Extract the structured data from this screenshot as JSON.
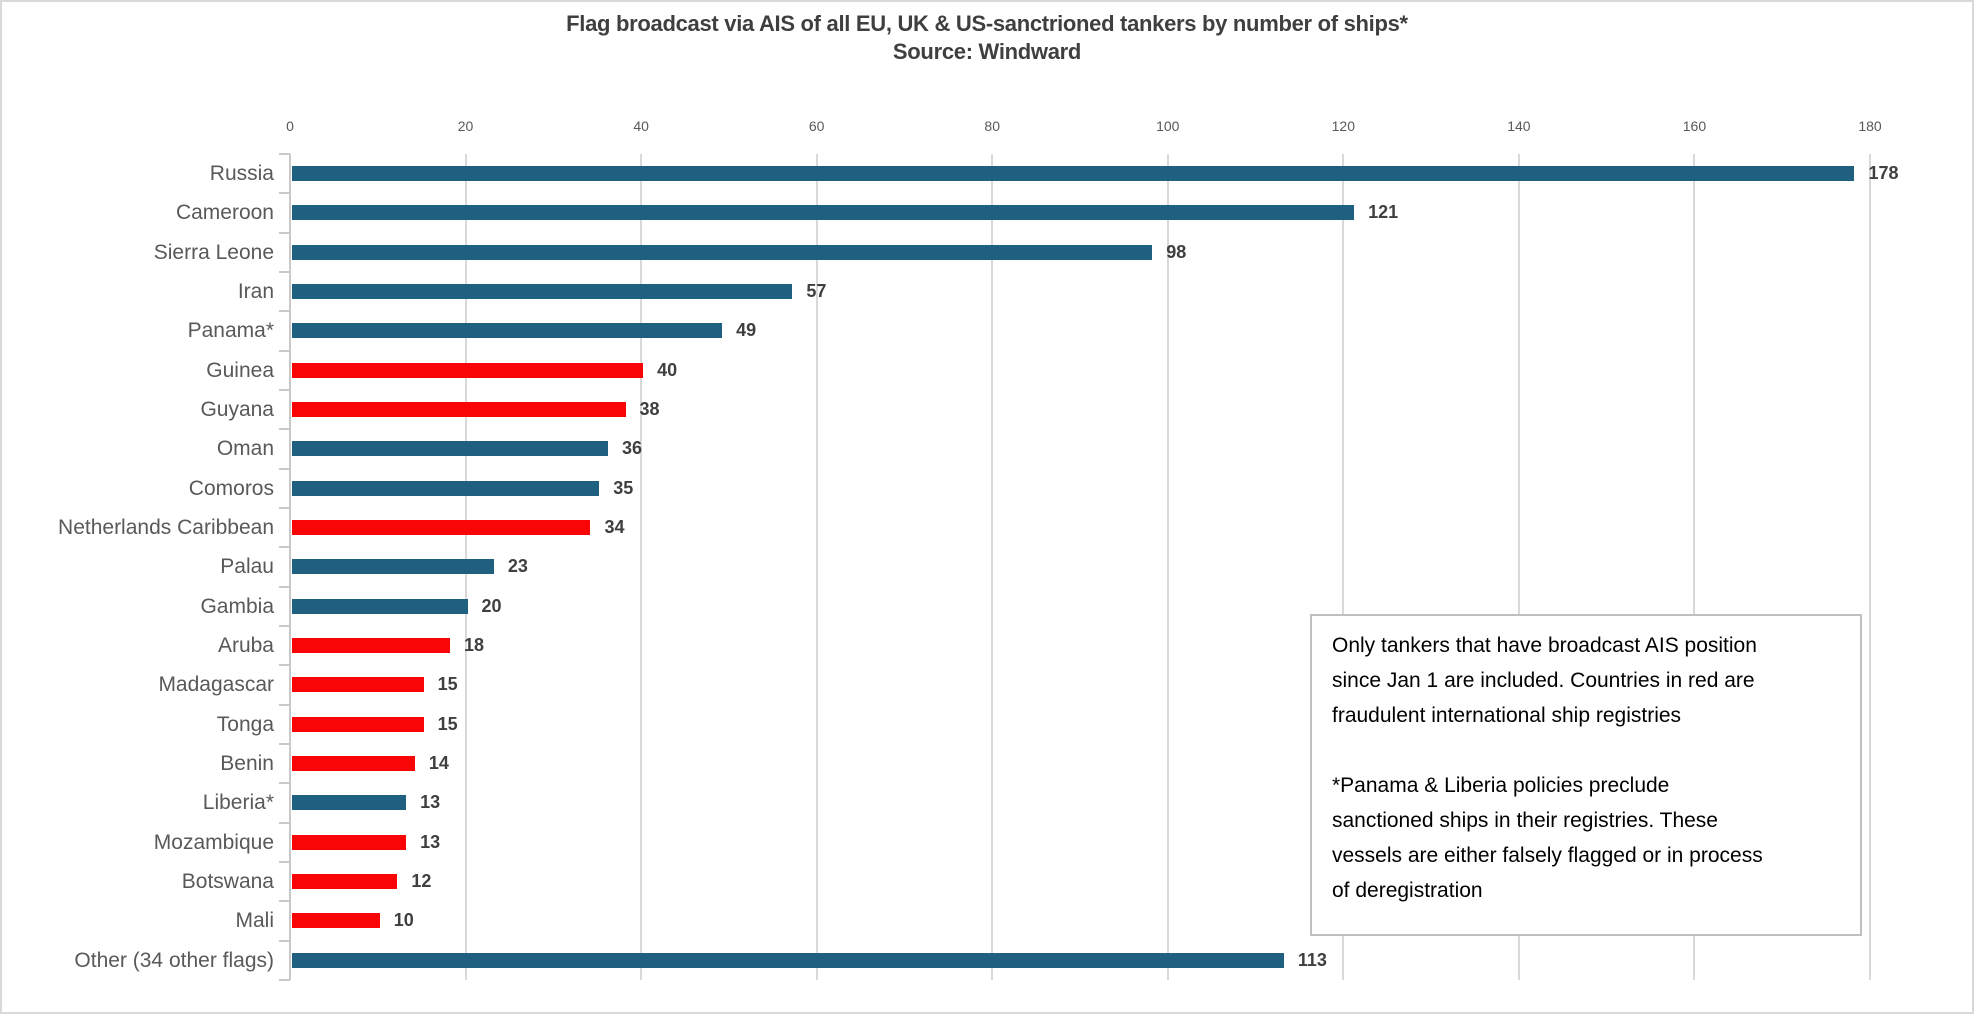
{
  "header": {
    "title": "Flag broadcast via AIS of all EU, UK & US-sanctrioned tankers by number of ships*",
    "subtitle": "Source: Windward"
  },
  "chart_data": {
    "type": "bar",
    "orientation": "horizontal",
    "title": "Flag broadcast via AIS of all EU, UK & US-sanctrioned tankers by number of ships*",
    "subtitle": "Source: Windward",
    "xlim": [
      0,
      180
    ],
    "x_ticks": [
      0,
      20,
      40,
      60,
      80,
      100,
      120,
      140,
      160,
      180
    ],
    "grid": true,
    "legend": false,
    "value_labels": true,
    "axis_position": "top",
    "bars": [
      {
        "label": "Russia",
        "value": 178,
        "color": "#1F5F7F"
      },
      {
        "label": "Cameroon",
        "value": 121,
        "color": "#1F5F7F"
      },
      {
        "label": "Sierra Leone",
        "value": 98,
        "color": "#1F5F7F"
      },
      {
        "label": "Iran",
        "value": 57,
        "color": "#1F5F7F"
      },
      {
        "label": "Panama*",
        "value": 49,
        "color": "#1F5F7F"
      },
      {
        "label": "Guinea",
        "value": 40,
        "color": "#F90505"
      },
      {
        "label": "Guyana",
        "value": 38,
        "color": "#F90505"
      },
      {
        "label": "Oman",
        "value": 36,
        "color": "#1F5F7F"
      },
      {
        "label": "Comoros",
        "value": 35,
        "color": "#1F5F7F"
      },
      {
        "label": "Netherlands Caribbean",
        "value": 34,
        "color": "#F90505"
      },
      {
        "label": "Palau",
        "value": 23,
        "color": "#1F5F7F"
      },
      {
        "label": "Gambia",
        "value": 20,
        "color": "#1F5F7F"
      },
      {
        "label": "Aruba",
        "value": 18,
        "color": "#F90505"
      },
      {
        "label": "Madagascar",
        "value": 15,
        "color": "#F90505"
      },
      {
        "label": "Tonga",
        "value": 15,
        "color": "#F90505"
      },
      {
        "label": "Benin",
        "value": 14,
        "color": "#F90505"
      },
      {
        "label": "Liberia*",
        "value": 13,
        "color": "#1F5F7F"
      },
      {
        "label": "Mozambique",
        "value": 13,
        "color": "#F90505"
      },
      {
        "label": "Botswana",
        "value": 12,
        "color": "#F90505"
      },
      {
        "label": "Mali",
        "value": 10,
        "color": "#F90505"
      },
      {
        "label": "Other (34 other flags)",
        "value": 113,
        "color": "#1F5F7F"
      }
    ]
  },
  "annotation_box": {
    "paragraph1": "Only tankers that have broadcast AIS position since Jan 1 are included. Countries in red are fraudulent international ship registries",
    "paragraph2": "*Panama & Liberia policies preclude sanctioned ships in their registries. These vessels are either falsely flagged or in process of deregistration",
    "lines": [
      "Only tankers that have broadcast AIS position",
      "since Jan 1 are included. Countries in red are",
      "fraudulent international ship registries",
      "",
      "*Panama & Liberia policies preclude",
      "sanctioned ships in their registries. These",
      "vessels are either falsely flagged or in process",
      "of deregistration"
    ]
  },
  "colors": {
    "default_bar": "#1F5F7F",
    "fraudulent_bar": "#F90505",
    "title_text": "#3F3F3F",
    "axis_text": "#595959",
    "category_text": "#595959",
    "value_text": "#3F3F3F",
    "gridline": "#D9D9D9",
    "axis_line": "#C9C9C9",
    "box_border": "#BFBFBF",
    "frame_border": "#D9D9D9"
  }
}
